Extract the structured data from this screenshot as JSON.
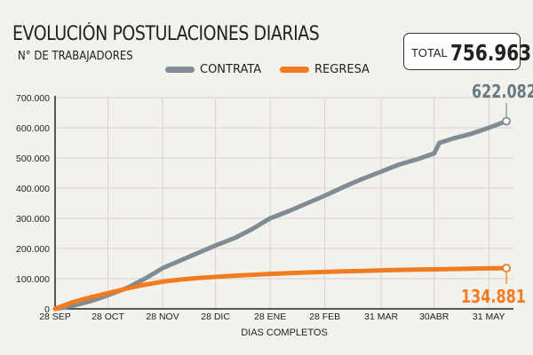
{
  "header": {
    "title": "EVOLUCIÓN POSTULACIONES DIARIAS",
    "subtitle": "N° DE TRABAJADORES",
    "total_label": "TOTAL",
    "total_value": "756.963"
  },
  "end_labels": {
    "contrata": "622.082",
    "regresa": "134.881"
  },
  "chart_data": {
    "type": "line",
    "title": "EVOLUCIÓN POSTULACIONES DIARIAS",
    "ylabel": "N° DE TRABAJADORES",
    "xlabel": "DIAS COMPLETOS",
    "x_ticks": [
      "28 SEP",
      "28 OCT",
      "28 NOV",
      "28 DIC",
      "28 ENE",
      "28 FEB",
      "31 MAR",
      "30ABR",
      "31 MAY"
    ],
    "y_ticks": [
      "0",
      "100.000",
      "200.000",
      "300.000",
      "400.000",
      "500.000",
      "600.000",
      "700.000"
    ],
    "ylim": [
      0,
      700000
    ],
    "grid": true,
    "legend_position": "top-center",
    "series": [
      {
        "name": "CONTRATA",
        "color": "#7f8c93",
        "points": [
          [
            "2019-09-28",
            0
          ],
          [
            "2019-10-08",
            10000
          ],
          [
            "2019-10-18",
            25000
          ],
          [
            "2019-10-28",
            45000
          ],
          [
            "2019-11-08",
            70000
          ],
          [
            "2019-11-18",
            100000
          ],
          [
            "2019-11-28",
            135000
          ],
          [
            "2019-12-08",
            160000
          ],
          [
            "2019-12-18",
            185000
          ],
          [
            "2019-12-28",
            210000
          ],
          [
            "2020-01-08",
            235000
          ],
          [
            "2020-01-18",
            265000
          ],
          [
            "2020-01-28",
            300000
          ],
          [
            "2020-02-08",
            325000
          ],
          [
            "2020-02-18",
            350000
          ],
          [
            "2020-02-28",
            375000
          ],
          [
            "2020-03-10",
            405000
          ],
          [
            "2020-03-20",
            430000
          ],
          [
            "2020-03-31",
            455000
          ],
          [
            "2020-04-10",
            478000
          ],
          [
            "2020-04-20",
            495000
          ],
          [
            "2020-04-30",
            515000
          ],
          [
            "2020-05-03",
            550000
          ],
          [
            "2020-05-11",
            565000
          ],
          [
            "2020-05-21",
            580000
          ],
          [
            "2020-05-31",
            600000
          ],
          [
            "2020-06-10",
            622082
          ]
        ],
        "end_value": "622.082"
      },
      {
        "name": "REGRESA",
        "color": "#f07b20",
        "points": [
          [
            "2019-09-28",
            0
          ],
          [
            "2019-10-08",
            22000
          ],
          [
            "2019-10-18",
            38000
          ],
          [
            "2019-10-28",
            52000
          ],
          [
            "2019-11-08",
            68000
          ],
          [
            "2019-11-18",
            80000
          ],
          [
            "2019-11-28",
            90000
          ],
          [
            "2019-12-08",
            97000
          ],
          [
            "2019-12-18",
            102000
          ],
          [
            "2019-12-28",
            106000
          ],
          [
            "2020-01-08",
            110000
          ],
          [
            "2020-01-18",
            113000
          ],
          [
            "2020-01-28",
            116000
          ],
          [
            "2020-02-08",
            118500
          ],
          [
            "2020-02-18",
            120500
          ],
          [
            "2020-02-28",
            122500
          ],
          [
            "2020-03-10",
            124500
          ],
          [
            "2020-03-20",
            126000
          ],
          [
            "2020-03-31",
            127500
          ],
          [
            "2020-04-10",
            129000
          ],
          [
            "2020-04-20",
            130000
          ],
          [
            "2020-04-30",
            131000
          ],
          [
            "2020-05-10",
            132000
          ],
          [
            "2020-05-20",
            133000
          ],
          [
            "2020-05-31",
            134000
          ],
          [
            "2020-06-10",
            134881
          ]
        ],
        "end_value": "134.881"
      }
    ]
  }
}
